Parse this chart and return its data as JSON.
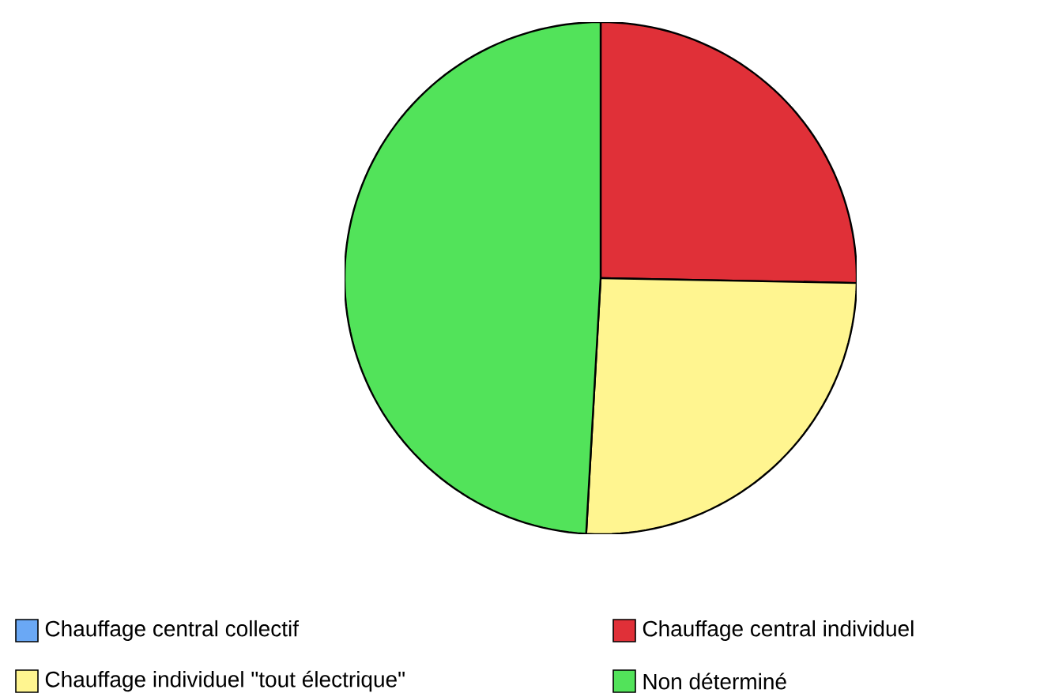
{
  "chart_data": {
    "type": "pie",
    "categories": [
      "Chauffage central collectif",
      "Chauffage central individuel",
      "Chauffage individuel \"tout électrique\"",
      "Non déterminé"
    ],
    "values": [
      0,
      25.3,
      25.6,
      49.1
    ],
    "colors": [
      "#6aa8f5",
      "#e03038",
      "#fff590",
      "#52e35a"
    ],
    "legend": "bottom"
  }
}
